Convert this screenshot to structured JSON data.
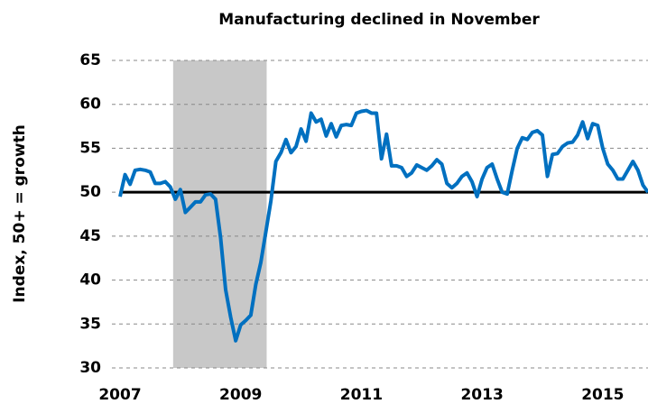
{
  "chart_data": {
    "type": "line",
    "title": "Manufacturing declined in November",
    "y_label": "Index, 50+ = growth",
    "x": [
      2007,
      2007.083,
      2007.167,
      2007.25,
      2007.333,
      2007.417,
      2007.5,
      2007.583,
      2007.667,
      2007.75,
      2007.833,
      2007.917,
      2008,
      2008.083,
      2008.167,
      2008.25,
      2008.333,
      2008.417,
      2008.5,
      2008.583,
      2008.667,
      2008.75,
      2008.833,
      2008.917,
      2009,
      2009.083,
      2009.167,
      2009.25,
      2009.333,
      2009.417,
      2009.5,
      2009.583,
      2009.667,
      2009.75,
      2009.833,
      2009.917,
      2010,
      2010.083,
      2010.167,
      2010.25,
      2010.333,
      2010.417,
      2010.5,
      2010.583,
      2010.667,
      2010.75,
      2010.833,
      2010.917,
      2011,
      2011.083,
      2011.167,
      2011.25,
      2011.333,
      2011.417,
      2011.5,
      2011.583,
      2011.667,
      2011.75,
      2011.833,
      2011.917,
      2012,
      2012.083,
      2012.167,
      2012.25,
      2012.333,
      2012.417,
      2012.5,
      2012.583,
      2012.667,
      2012.75,
      2012.833,
      2012.917,
      2013,
      2013.083,
      2013.167,
      2013.25,
      2013.333,
      2013.417,
      2013.5,
      2013.583,
      2013.667,
      2013.75,
      2013.833,
      2013.917,
      2014,
      2014.083,
      2014.167,
      2014.25,
      2014.333,
      2014.417,
      2014.5,
      2014.583,
      2014.667,
      2014.75,
      2014.833,
      2014.917,
      2015,
      2015.083,
      2015.167,
      2015.25,
      2015.333,
      2015.417,
      2015.5,
      2015.583,
      2015.667,
      2015.75
    ],
    "series": [
      {
        "name": "Index",
        "color": "#0070c0",
        "values": [
          49.5,
          52,
          50.9,
          52.5,
          52.6,
          52.5,
          52.3,
          51,
          51,
          51.2,
          50.6,
          49.2,
          50.3,
          47.7,
          48.3,
          48.9,
          48.9,
          49.7,
          49.8,
          49.2,
          44.8,
          38.9,
          35.8,
          33.1,
          34.9,
          35.4,
          36,
          39.5,
          42,
          45.5,
          49,
          53.5,
          54.5,
          56,
          54.5,
          55.2,
          57.2,
          55.8,
          59,
          58,
          58.3,
          56.4,
          57.8,
          56.3,
          57.6,
          57.7,
          57.6,
          59,
          59.2,
          59.3,
          59,
          59,
          53.8,
          56.6,
          53,
          53,
          52.8,
          51.8,
          52.2,
          53.1,
          52.8,
          52.5,
          53,
          53.7,
          53.2,
          51,
          50.5,
          51,
          51.8,
          52.2,
          51.2,
          49.5,
          51.5,
          52.8,
          53.2,
          51.5,
          50,
          49.8,
          52.5,
          55,
          56.2,
          56,
          56.8,
          57,
          56.5,
          51.8,
          54.3,
          54.4,
          55.2,
          55.6,
          55.7,
          56.5,
          58,
          56.1,
          57.8,
          57.6,
          55,
          53.2,
          52.5,
          51.5,
          51.5,
          52.5,
          53.5,
          52.5,
          50.8,
          50
        ]
      }
    ],
    "xlim": [
      2007,
      2015.75
    ],
    "xticks": [
      2007,
      2009,
      2011,
      2013,
      2015
    ],
    "ylim": [
      30,
      65
    ],
    "yticks": [
      30,
      35,
      40,
      45,
      50,
      55,
      60,
      65
    ],
    "grid": true,
    "reference_line": 50,
    "shaded_range": [
      2007.88,
      2009.43
    ],
    "shade_color": "#c8c8c8"
  }
}
